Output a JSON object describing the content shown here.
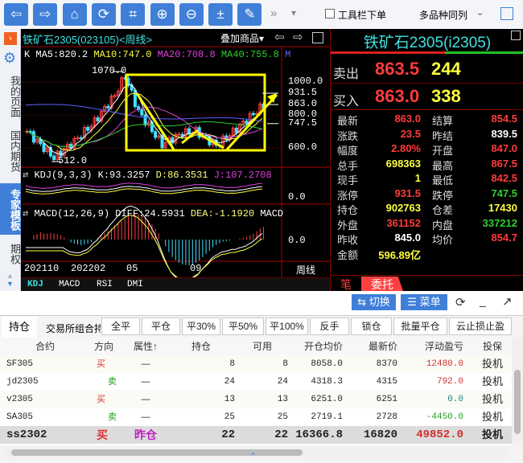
{
  "toolbar": {
    "buttons": [
      "back-icon",
      "forward-icon",
      "home-icon",
      "refresh-icon",
      "crop-icon",
      "zoom-in-icon",
      "zoom-out-icon",
      "calculator-icon",
      "pen-icon"
    ],
    "more": "»",
    "dropdown": "▾",
    "order_checkbox_label": "工具栏下单",
    "order_checked": false,
    "layout_select": "多品种同列"
  },
  "sidebar": {
    "items": [
      "我的页面",
      "国内期货",
      "专家模板",
      "期权"
    ],
    "active": "专家模板"
  },
  "chart": {
    "title": "铁矿石2305(023105)<周线>",
    "overlay": "叠加商品▾",
    "ma": {
      "k": "K",
      "ma5": "MA5:820.2",
      "ma10": "MA10:747.0",
      "ma20": "MA20:708.8",
      "ma40": "MA40:755.8",
      "more": "M"
    },
    "high_label": "1070.0",
    "low_label": "512.0",
    "price_ticks": [
      "1000.0",
      "931.5",
      "863.0",
      "800.0",
      "747.5",
      "600.0"
    ],
    "kdj": {
      "name": "KDJ(9,3,3)",
      "k": "K:93.3257",
      "d": "D:86.3531",
      "j": "J:107.2708",
      "zero": "0.0"
    },
    "macd": {
      "name": "MACD(12,26,9)",
      "diff": "DIFF:24.5931",
      "dea": "DEA:-1.1920",
      "macd": "MACD",
      "zero": "0.0"
    },
    "dates": [
      "202110",
      "202202",
      "05",
      "09"
    ],
    "period": "周线",
    "tabs": [
      "KDJ",
      "MACD",
      "RSI",
      "DMI"
    ],
    "active_tab": "KDJ",
    "colors": {
      "ma5": "#ffffff",
      "ma10": "#ffff40",
      "ma20": "#e040e0",
      "ma40": "#30d030",
      "up": "#ff4040",
      "down": "#40e0ff",
      "annotation": "#ffff00"
    }
  },
  "quote": {
    "title": "铁矿石2305(i2305)",
    "sell_label": "卖出",
    "sell_price": "863.5",
    "sell_vol": "244",
    "buy_label": "买入",
    "buy_price": "863.0",
    "buy_vol": "338",
    "stats": [
      [
        "最新",
        "863.0",
        "red",
        "结算",
        "854.5",
        "red"
      ],
      [
        "涨跌",
        "23.5",
        "red",
        "昨结",
        "839.5",
        "wht"
      ],
      [
        "幅度",
        "2.80%",
        "red",
        "开盘",
        "847.0",
        "red"
      ],
      [
        "总手",
        "698363",
        "yel",
        "最高",
        "867.5",
        "red"
      ],
      [
        "现手",
        "1",
        "yel",
        "最低",
        "842.5",
        "red"
      ],
      [
        "涨停",
        "931.5",
        "red",
        "跌停",
        "747.5",
        "grn"
      ],
      [
        "持仓",
        "902763",
        "yel",
        "仓差",
        "17430",
        "yel"
      ],
      [
        "外盘",
        "361152",
        "red",
        "内盘",
        "337212",
        "grn"
      ],
      [
        "昨收",
        "845.0",
        "wht",
        "均价",
        "854.7",
        "red"
      ],
      [
        "金额",
        "596.89亿",
        "yel",
        "",
        "",
        " "
      ]
    ],
    "tabs": [
      "笔",
      "委托"
    ]
  },
  "actions": {
    "switch": "⇆ 切换",
    "menu": "☰ 菜单"
  },
  "positions": {
    "tabs": [
      "持仓",
      "交易所组合持"
    ],
    "buttons": [
      "全平",
      "平仓",
      "平30%",
      "平50%",
      "平100%",
      "反手",
      "锁仓",
      "批量平仓",
      "云止损止盈"
    ],
    "columns": [
      "合约",
      "方向",
      "属性↑",
      "持仓",
      "可用",
      "开仓均价",
      "最新价",
      "浮动盈亏",
      "投保"
    ],
    "rows": [
      [
        "SF305",
        "买",
        "—",
        "8",
        "8",
        "8058.0",
        "8370",
        "12480.0",
        "投机"
      ],
      [
        "jd2305",
        "卖",
        "—",
        "24",
        "24",
        "4318.3",
        "4315",
        "792.0",
        "投机"
      ],
      [
        "v2305",
        "买",
        "—",
        "13",
        "13",
        "6251.0",
        "6251",
        "0.0",
        "投机"
      ],
      [
        "SA305",
        "卖",
        "—",
        "25",
        "25",
        "2719.1",
        "2728",
        "-4450.0",
        "投机"
      ],
      [
        "ss2302",
        "买",
        "昨仓",
        "22",
        "22",
        "16366.8",
        "16820",
        "49852.0",
        "投机"
      ]
    ]
  }
}
